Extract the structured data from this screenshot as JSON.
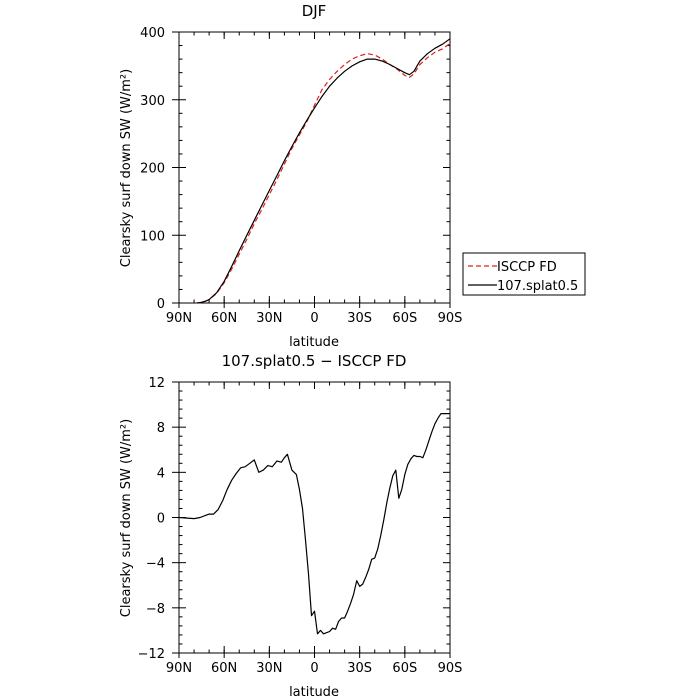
{
  "chart_data": [
    {
      "type": "line",
      "title": "DJF",
      "xlabel": "latitude",
      "ylabel": "Clearsky surf down SW (W/m²)",
      "xlim": [
        -90,
        90
      ],
      "ylim": [
        0,
        400
      ],
      "x_ticks": [
        -90,
        -60,
        -30,
        0,
        30,
        60,
        90
      ],
      "x_tick_labels": [
        "90N",
        "60N",
        "30N",
        "0",
        "30S",
        "60S",
        "90S"
      ],
      "y_ticks": [
        0,
        100,
        200,
        300,
        400
      ],
      "y_tick_labels": [
        "0",
        "100",
        "200",
        "300",
        "400"
      ],
      "legend": "outside-right",
      "series": [
        {
          "name": "ISCCP FD",
          "color": "#e0201b",
          "dash": true,
          "x": [
            -78,
            -75,
            -72,
            -70,
            -65,
            -60,
            -55,
            -50,
            -45,
            -40,
            -35,
            -30,
            -25,
            -20,
            -15,
            -10,
            -5,
            0,
            5,
            10,
            15,
            20,
            25,
            30,
            35,
            40,
            45,
            50,
            55,
            60,
            63,
            66,
            70,
            75,
            80,
            85,
            90
          ],
          "y": [
            0,
            1,
            3,
            5,
            14,
            30,
            50,
            72,
            94,
            117,
            138,
            160,
            182,
            205,
            228,
            248,
            268,
            292,
            315,
            330,
            342,
            352,
            360,
            365,
            368,
            366,
            360,
            352,
            345,
            336,
            333,
            338,
            352,
            362,
            370,
            375,
            383
          ]
        },
        {
          "name": "107.splat0.5",
          "color": "#000000",
          "dash": false,
          "x": [
            -78,
            -75,
            -72,
            -70,
            -65,
            -60,
            -55,
            -50,
            -45,
            -40,
            -35,
            -30,
            -25,
            -20,
            -15,
            -10,
            -5,
            0,
            5,
            10,
            15,
            20,
            25,
            30,
            35,
            40,
            45,
            50,
            55,
            60,
            63,
            66,
            70,
            75,
            80,
            85,
            90
          ],
          "y": [
            0,
            1,
            3,
            5,
            15,
            32,
            54,
            77,
            100,
            122,
            144,
            166,
            188,
            210,
            231,
            251,
            270,
            288,
            305,
            320,
            332,
            342,
            350,
            356,
            360,
            360,
            357,
            352,
            346,
            340,
            337,
            342,
            357,
            368,
            376,
            382,
            390
          ]
        }
      ]
    },
    {
      "type": "line",
      "title": "107.splat0.5 − ISCCP FD",
      "xlabel": "latitude",
      "ylabel": "Clearsky surf down SW (W/m²)",
      "xlim": [
        -90,
        90
      ],
      "ylim": [
        -12,
        12
      ],
      "x_ticks": [
        -90,
        -60,
        -30,
        0,
        30,
        60,
        90
      ],
      "x_tick_labels": [
        "90N",
        "60N",
        "30N",
        "0",
        "30S",
        "60S",
        "90S"
      ],
      "y_ticks": [
        -12,
        -8,
        -4,
        0,
        4,
        8,
        12
      ],
      "y_tick_labels": [
        "−12",
        "−8",
        "−4",
        "0",
        "4",
        "8",
        "12"
      ],
      "series": [
        {
          "color": "#000000",
          "dash": false,
          "x": [
            -90,
            -80,
            -76,
            -72,
            -70,
            -67,
            -64,
            -61,
            -58,
            -55,
            -52,
            -49,
            -46,
            -43,
            -40,
            -37,
            -34,
            -31,
            -28,
            -25,
            -22,
            -20,
            -18,
            -15,
            -12,
            -10,
            -8,
            -6,
            -4,
            -2,
            0,
            2,
            4,
            6,
            8,
            10,
            12,
            14,
            16,
            18,
            20,
            22,
            24,
            26,
            28,
            30,
            32,
            34,
            36,
            38,
            40,
            42,
            44,
            46,
            48,
            50,
            52,
            54,
            56,
            58,
            60,
            62,
            64,
            66,
            68,
            70,
            72,
            74,
            76,
            78,
            80,
            82,
            84,
            86,
            88,
            90
          ],
          "y": [
            0,
            -0.1,
            0,
            0.2,
            0.3,
            0.3,
            0.7,
            1.5,
            2.5,
            3.3,
            3.9,
            4.4,
            4.5,
            4.8,
            5.1,
            4.0,
            4.2,
            4.6,
            4.5,
            5.0,
            4.9,
            5.3,
            5.6,
            4.2,
            3.8,
            2.5,
            0.8,
            -2.0,
            -5.0,
            -8.7,
            -8.3,
            -10.3,
            -10.0,
            -10.3,
            -10.2,
            -10.1,
            -9.8,
            -9.9,
            -9.2,
            -8.9,
            -8.9,
            -8.3,
            -7.6,
            -6.8,
            -5.6,
            -6.1,
            -5.9,
            -5.3,
            -4.6,
            -3.7,
            -3.6,
            -2.8,
            -1.6,
            -0.2,
            1.3,
            2.6,
            3.7,
            4.2,
            1.7,
            2.5,
            3.8,
            4.7,
            5.2,
            5.5,
            5.4,
            5.4,
            5.3,
            6.0,
            6.8,
            7.6,
            8.3,
            8.8,
            9.2,
            9.2,
            9.2,
            9.2
          ]
        }
      ]
    }
  ]
}
